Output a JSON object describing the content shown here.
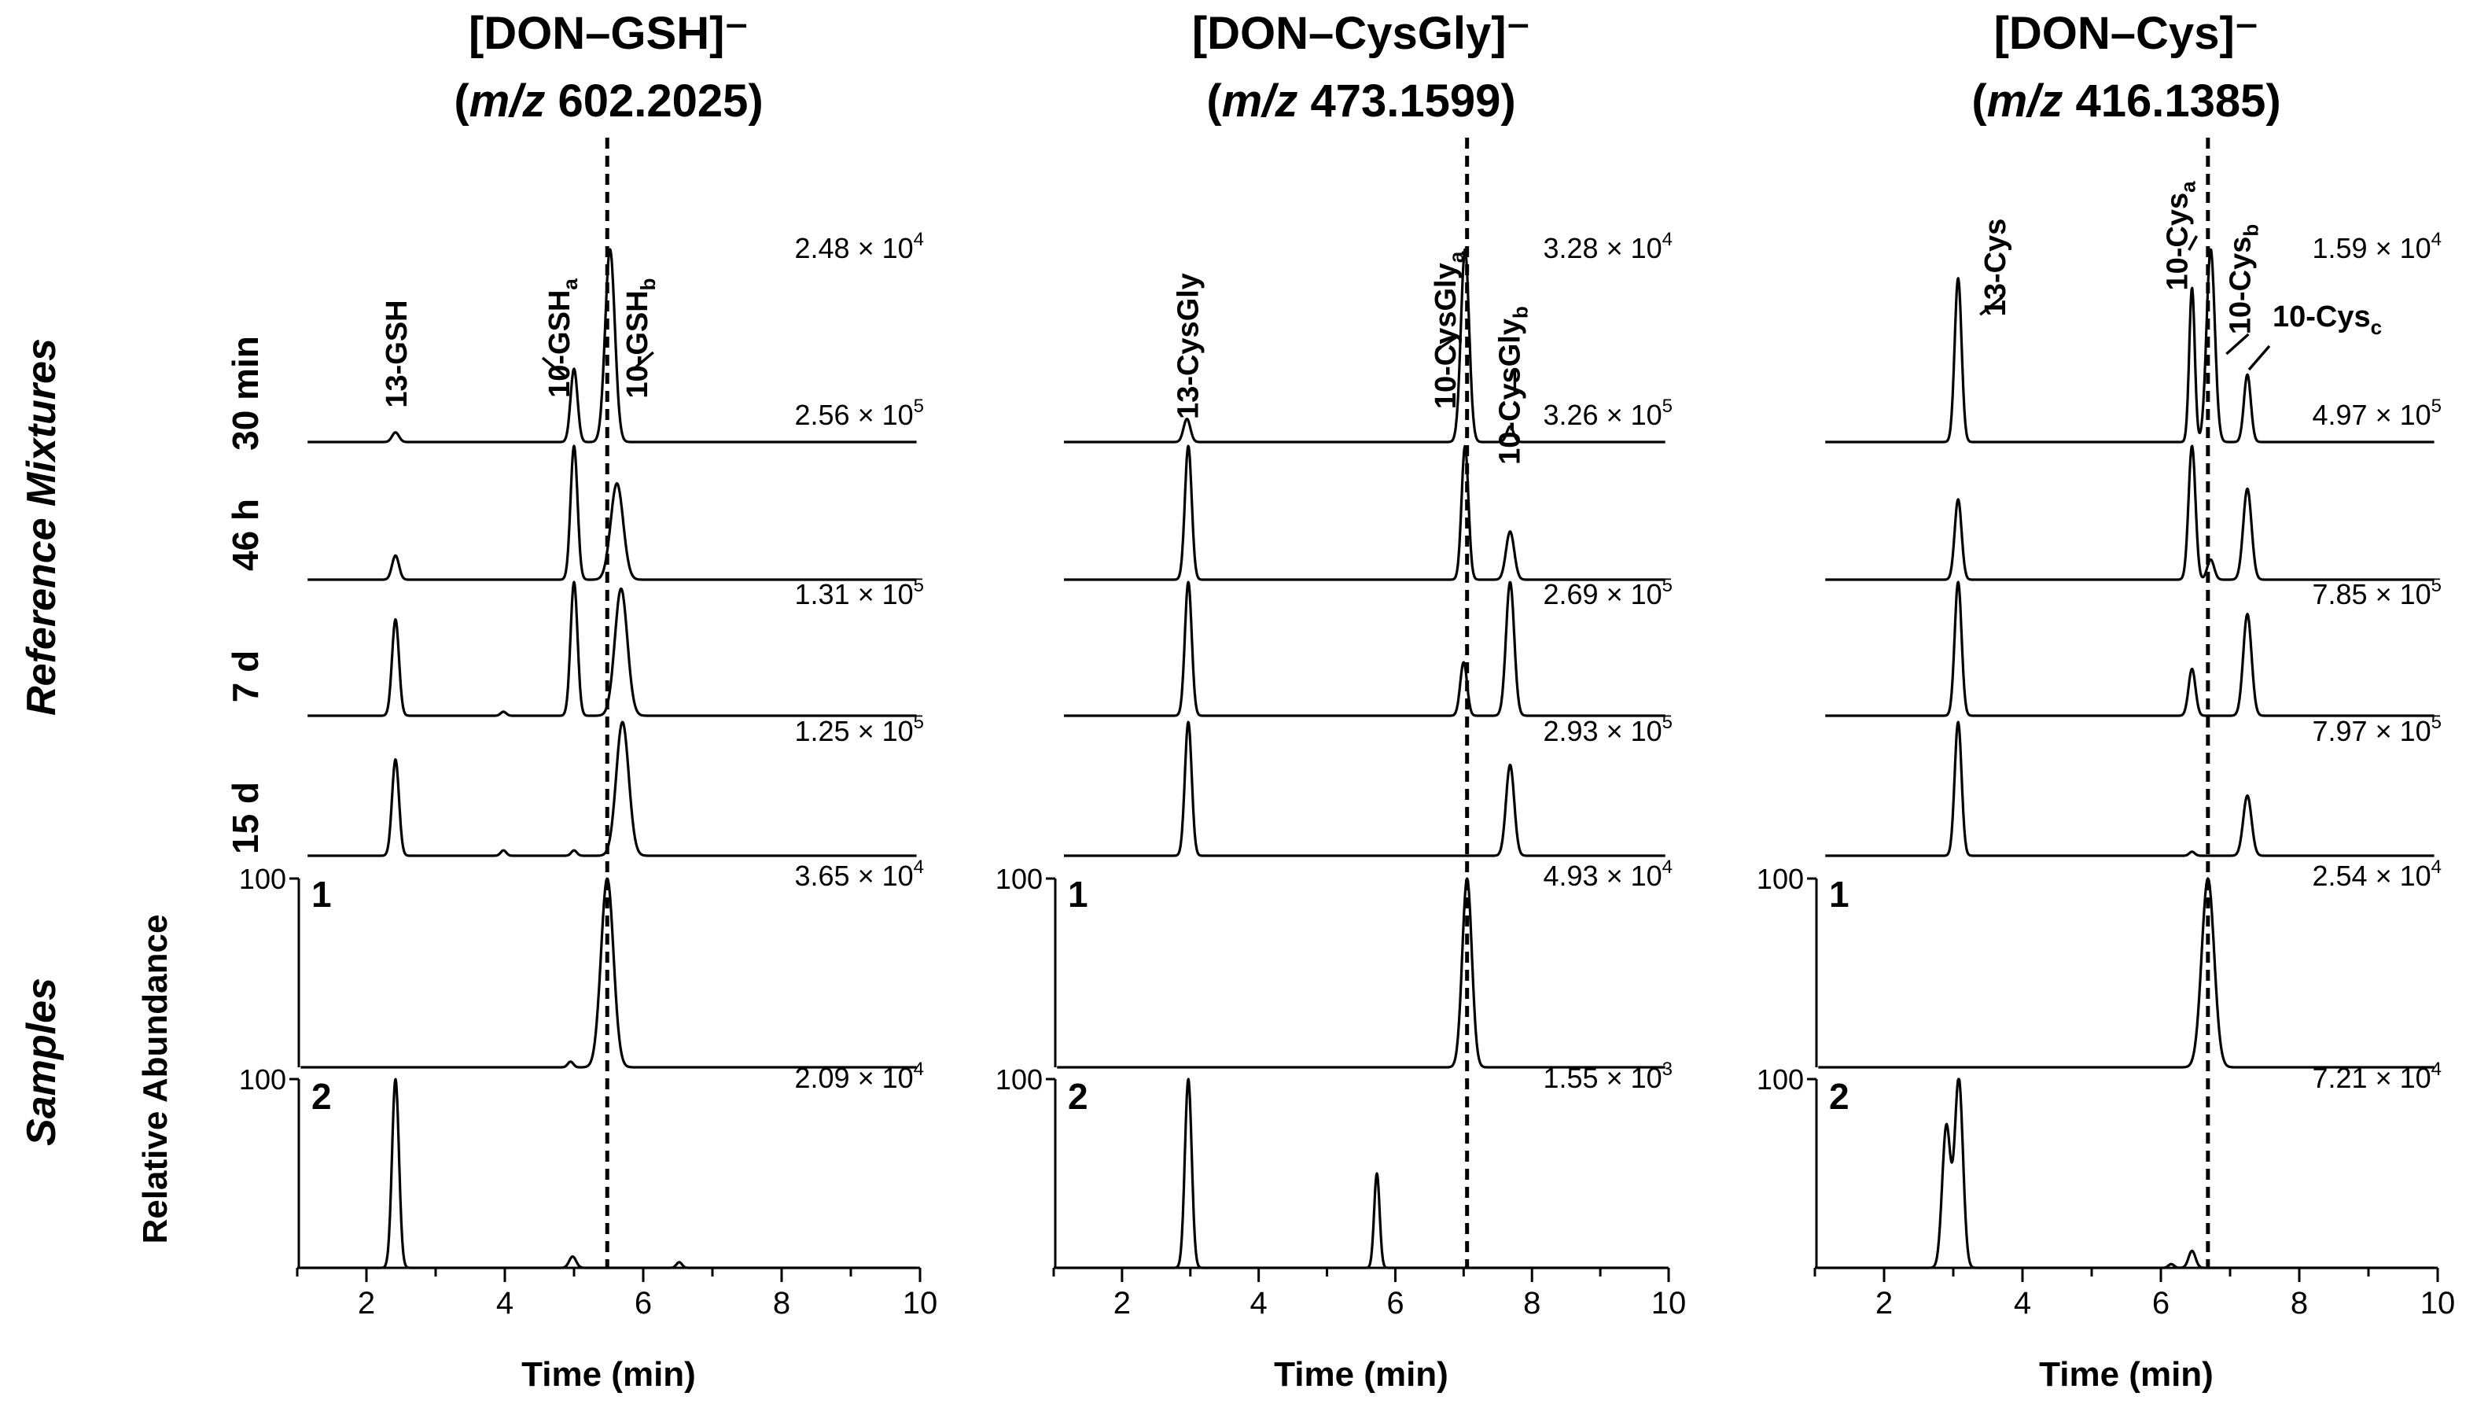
{
  "side_labels": {
    "reference": "Reference Mixtures",
    "samples": "Samples",
    "y_axis": "Relative Abundance"
  },
  "chart_data": {
    "type": "line",
    "x_label": "Time (min)",
    "x_ticks": [
      2,
      4,
      6,
      8,
      10
    ],
    "x_range": [
      1,
      10
    ],
    "y_range": [
      0,
      100
    ],
    "y_tick_label": "100",
    "row_labels": [
      "30 min",
      "46 h",
      "7 d",
      "15 d",
      "1",
      "2"
    ],
    "panels": [
      {
        "id": "gsh",
        "title_line1": "[DON–GSH]⁻",
        "title_mz_italic": "m/z",
        "title_mz_value": " 602.2025)",
        "dashed_x": 5.48,
        "peak_labels": [
          {
            "text": "13-GSH",
            "sub": "",
            "x": 2.42
          },
          {
            "text": "10-GSH",
            "sub": "a",
            "x": 5.0
          },
          {
            "text": "10-GSH",
            "sub": "b",
            "x": 5.6
          }
        ],
        "rows": [
          {
            "label": "30 min",
            "intensity_base": "2.48 × 10",
            "intensity_exp": "4",
            "peaks": [
              {
                "x": 2.42,
                "h": 5,
                "w": 0.05
              },
              {
                "x": 5.0,
                "h": 38,
                "w": 0.05
              },
              {
                "x": 5.52,
                "h": 100,
                "w": 0.07
              }
            ]
          },
          {
            "label": "46 h",
            "intensity_base": "2.56 × 10",
            "intensity_exp": "5",
            "peaks": [
              {
                "x": 2.42,
                "h": 18,
                "w": 0.05
              },
              {
                "x": 5.0,
                "h": 100,
                "w": 0.05
              },
              {
                "x": 5.62,
                "h": 72,
                "w": 0.09
              }
            ]
          },
          {
            "label": "7 d",
            "intensity_base": "1.31 × 10",
            "intensity_exp": "5",
            "peaks": [
              {
                "x": 2.42,
                "h": 72,
                "w": 0.05
              },
              {
                "x": 3.98,
                "h": 3,
                "w": 0.04
              },
              {
                "x": 5.0,
                "h": 100,
                "w": 0.05
              },
              {
                "x": 5.68,
                "h": 95,
                "w": 0.09
              }
            ]
          },
          {
            "label": "15 d",
            "intensity_base": "1.25 × 10",
            "intensity_exp": "5",
            "peaks": [
              {
                "x": 2.42,
                "h": 72,
                "w": 0.05
              },
              {
                "x": 3.98,
                "h": 4,
                "w": 0.04
              },
              {
                "x": 5.0,
                "h": 4,
                "w": 0.04
              },
              {
                "x": 5.7,
                "h": 100,
                "w": 0.09
              }
            ]
          },
          {
            "label": "1",
            "intensity_base": "3.65 × 10",
            "intensity_exp": "4",
            "peaks": [
              {
                "x": 4.95,
                "h": 3,
                "w": 0.04
              },
              {
                "x": 5.48,
                "h": 100,
                "w": 0.09
              }
            ]
          },
          {
            "label": "2",
            "intensity_base": "2.09 × 10",
            "intensity_exp": "4",
            "peaks": [
              {
                "x": 2.42,
                "h": 100,
                "w": 0.05
              },
              {
                "x": 4.98,
                "h": 6,
                "w": 0.05
              },
              {
                "x": 6.52,
                "h": 3,
                "w": 0.04
              }
            ]
          }
        ]
      },
      {
        "id": "cysgly",
        "title_line1": "[DON–CysGly]⁻",
        "title_mz_italic": "m/z",
        "title_mz_value": " 473.1599)",
        "dashed_x": 7.05,
        "peak_labels": [
          {
            "text": "13-CysGly",
            "sub": "",
            "x": 2.95
          },
          {
            "text": "10-CysGly",
            "sub": "a",
            "x": 7.02
          },
          {
            "text": "10-CysGly",
            "sub": "b",
            "x": 7.68
          }
        ],
        "rows": [
          {
            "label": "30 min",
            "intensity_base": "3.28 × 10",
            "intensity_exp": "4",
            "peaks": [
              {
                "x": 2.95,
                "h": 12,
                "w": 0.05
              },
              {
                "x": 7.02,
                "h": 100,
                "w": 0.06
              },
              {
                "x": 7.68,
                "h": 8,
                "w": 0.05
              }
            ]
          },
          {
            "label": "46 h",
            "intensity_base": "3.26 × 10",
            "intensity_exp": "5",
            "peaks": [
              {
                "x": 2.97,
                "h": 100,
                "w": 0.05
              },
              {
                "x": 7.02,
                "h": 100,
                "w": 0.05
              },
              {
                "x": 7.68,
                "h": 36,
                "w": 0.06
              }
            ]
          },
          {
            "label": "7 d",
            "intensity_base": "2.69 × 10",
            "intensity_exp": "5",
            "peaks": [
              {
                "x": 2.97,
                "h": 100,
                "w": 0.05
              },
              {
                "x": 7.0,
                "h": 40,
                "w": 0.05
              },
              {
                "x": 7.68,
                "h": 100,
                "w": 0.06
              }
            ]
          },
          {
            "label": "15 d",
            "intensity_base": "2.93 × 10",
            "intensity_exp": "5",
            "peaks": [
              {
                "x": 2.97,
                "h": 100,
                "w": 0.05
              },
              {
                "x": 7.68,
                "h": 68,
                "w": 0.06
              }
            ]
          },
          {
            "label": "1",
            "intensity_base": "4.93 × 10",
            "intensity_exp": "4",
            "peaks": [
              {
                "x": 7.05,
                "h": 100,
                "w": 0.07
              }
            ]
          },
          {
            "label": "2",
            "intensity_base": "1.55 × 10",
            "intensity_exp": "3",
            "peaks": [
              {
                "x": 2.97,
                "h": 100,
                "w": 0.05
              },
              {
                "x": 5.73,
                "h": 50,
                "w": 0.04
              }
            ]
          }
        ]
      },
      {
        "id": "cys",
        "title_line1": "[DON–Cys]⁻",
        "title_mz_italic": "m/z",
        "title_mz_value": " 416.1385)",
        "dashed_x": 6.68,
        "peak_labels": [
          {
            "text": "13-Cys",
            "sub": "",
            "x": 3.07
          },
          {
            "text": "10-Cys",
            "sub": "a",
            "x": 6.45
          },
          {
            "text": "10-Cys",
            "sub": "b",
            "x": 6.72
          },
          {
            "text": "10-Cys",
            "sub": "c",
            "x": 7.25
          }
        ],
        "rows": [
          {
            "label": "30 min",
            "intensity_base": "1.59 × 10",
            "intensity_exp": "4",
            "peaks": [
              {
                "x": 3.07,
                "h": 85,
                "w": 0.05
              },
              {
                "x": 6.45,
                "h": 80,
                "w": 0.04
              },
              {
                "x": 6.72,
                "h": 100,
                "w": 0.06
              },
              {
                "x": 7.25,
                "h": 35,
                "w": 0.05
              }
            ]
          },
          {
            "label": "46 h",
            "intensity_base": "4.97 × 10",
            "intensity_exp": "5",
            "peaks": [
              {
                "x": 3.07,
                "h": 60,
                "w": 0.05
              },
              {
                "x": 6.45,
                "h": 100,
                "w": 0.05
              },
              {
                "x": 6.72,
                "h": 15,
                "w": 0.05
              },
              {
                "x": 7.25,
                "h": 68,
                "w": 0.06
              }
            ]
          },
          {
            "label": "7 d",
            "intensity_base": "7.85 × 10",
            "intensity_exp": "5",
            "peaks": [
              {
                "x": 3.07,
                "h": 100,
                "w": 0.05
              },
              {
                "x": 6.45,
                "h": 35,
                "w": 0.05
              },
              {
                "x": 7.25,
                "h": 76,
                "w": 0.06
              }
            ]
          },
          {
            "label": "15 d",
            "intensity_base": "7.97 × 10",
            "intensity_exp": "5",
            "peaks": [
              {
                "x": 3.07,
                "h": 100,
                "w": 0.05
              },
              {
                "x": 6.45,
                "h": 3,
                "w": 0.04
              },
              {
                "x": 7.25,
                "h": 45,
                "w": 0.06
              }
            ]
          },
          {
            "label": "1",
            "intensity_base": "2.54 × 10",
            "intensity_exp": "4",
            "peaks": [
              {
                "x": 6.68,
                "h": 100,
                "w": 0.09
              }
            ]
          },
          {
            "label": "2",
            "intensity_base": "7.21 × 10",
            "intensity_exp": "4",
            "peaks": [
              {
                "x": 2.9,
                "h": 75,
                "w": 0.06
              },
              {
                "x": 3.08,
                "h": 100,
                "w": 0.06
              },
              {
                "x": 6.15,
                "h": 2,
                "w": 0.04
              },
              {
                "x": 6.45,
                "h": 9,
                "w": 0.05
              }
            ]
          }
        ]
      }
    ]
  }
}
